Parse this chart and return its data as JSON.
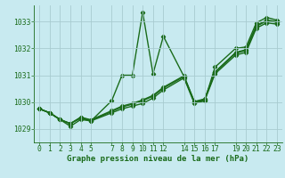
{
  "title": "Graphe pression niveau de la mer (hPa)",
  "bg_color": "#c8eaf0",
  "line_color": "#1a6b1a",
  "grid_color": "#a8ccd0",
  "ylim": [
    1028.5,
    1033.6
  ],
  "yticks": [
    1029,
    1030,
    1031,
    1032,
    1033
  ],
  "xlim": [
    -0.5,
    23.5
  ],
  "xticks": [
    0,
    1,
    2,
    3,
    4,
    5,
    7,
    8,
    9,
    10,
    11,
    12,
    14,
    15,
    16,
    17,
    19,
    20,
    21,
    22,
    23
  ],
  "xtick_labels": [
    "0",
    "1",
    "2",
    "3",
    "4",
    "5",
    "7",
    "8",
    "9",
    "101112",
    "",
    "",
    "141516",
    "",
    "",
    "17",
    "192021",
    "",
    "",
    "2223",
    ""
  ],
  "series": [
    {
      "x": [
        0,
        1,
        2,
        3,
        4,
        5,
        7,
        8,
        9,
        10,
        11,
        12,
        14,
        15,
        16,
        17,
        19,
        20,
        21,
        22,
        23
      ],
      "y": [
        1029.75,
        1029.6,
        1029.35,
        1029.1,
        1029.35,
        1029.3,
        1030.05,
        1031.0,
        1031.0,
        1033.35,
        1031.05,
        1032.45,
        1030.95,
        1030.0,
        1030.05,
        1031.3,
        1032.0,
        1032.05,
        1032.95,
        1033.15,
        1033.05
      ]
    },
    {
      "x": [
        0,
        1,
        2,
        3,
        4,
        5,
        7,
        8,
        9,
        10,
        11,
        12,
        14,
        15,
        16,
        17,
        19,
        20,
        21,
        22,
        23
      ],
      "y": [
        1029.75,
        1029.6,
        1029.35,
        1029.2,
        1029.4,
        1029.3,
        1029.6,
        1029.75,
        1029.85,
        1029.95,
        1030.15,
        1030.45,
        1030.9,
        1029.95,
        1030.05,
        1031.05,
        1031.75,
        1031.85,
        1032.75,
        1032.95,
        1032.9
      ]
    },
    {
      "x": [
        0,
        1,
        2,
        3,
        4,
        5,
        7,
        8,
        9,
        10,
        11,
        12,
        14,
        15,
        16,
        17,
        19,
        20,
        21,
        22,
        23
      ],
      "y": [
        1029.75,
        1029.6,
        1029.35,
        1029.2,
        1029.42,
        1029.32,
        1029.65,
        1029.82,
        1029.92,
        1030.05,
        1030.22,
        1030.52,
        1030.95,
        1030.0,
        1030.1,
        1031.1,
        1031.82,
        1031.92,
        1032.82,
        1033.02,
        1032.97
      ]
    },
    {
      "x": [
        0,
        1,
        2,
        3,
        4,
        5,
        7,
        8,
        9,
        10,
        11,
        12,
        14,
        15,
        16,
        17,
        19,
        20,
        21,
        22,
        23
      ],
      "y": [
        1029.75,
        1029.6,
        1029.35,
        1029.2,
        1029.44,
        1029.34,
        1029.68,
        1029.85,
        1029.95,
        1030.08,
        1030.25,
        1030.55,
        1030.98,
        1030.02,
        1030.12,
        1031.12,
        1031.85,
        1031.95,
        1032.85,
        1033.05,
        1033.0
      ]
    }
  ],
  "marker": "D",
  "marker_size": 2.2,
  "linewidth": 1.0,
  "title_fontsize": 6.5,
  "tick_fontsize": 5.8
}
